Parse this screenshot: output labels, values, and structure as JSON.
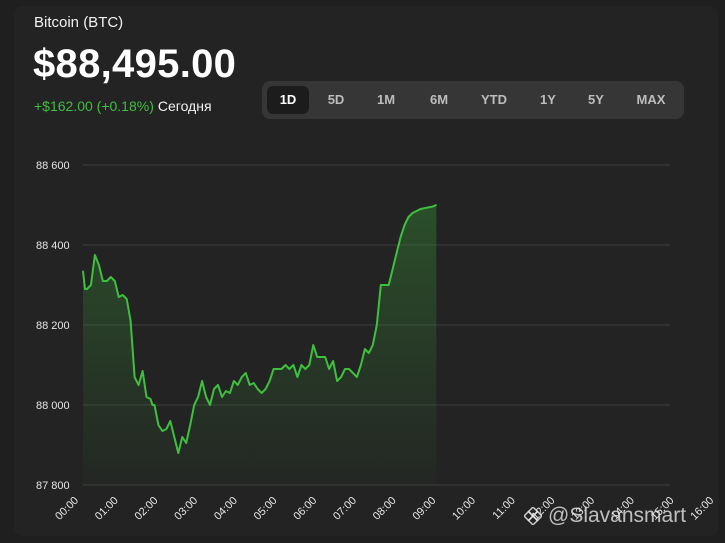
{
  "header": {
    "coin_name": "Bitcoin (BTC)",
    "price": "$88,495.00",
    "change": "+$162.00 (+0.18%)",
    "change_period": "Сегодня"
  },
  "range_tabs": [
    {
      "label": "1D",
      "active": true
    },
    {
      "label": "5D",
      "active": false
    },
    {
      "label": "1M",
      "active": false
    },
    {
      "label": "6M",
      "active": false
    },
    {
      "label": "YTD",
      "active": false
    },
    {
      "label": "1Y",
      "active": false
    },
    {
      "label": "5Y",
      "active": false
    },
    {
      "label": "MAX",
      "active": false
    }
  ],
  "watermark": {
    "text": "@Slavansmart",
    "icon": "binance-square-icon"
  },
  "colors": {
    "background": "#1f1f1f",
    "line": "#3fbf3f",
    "gain_text": "#3fbf3f",
    "grid": "#3c3c3c"
  },
  "chart_data": {
    "type": "area",
    "title": "",
    "xlabel": "",
    "ylabel": "",
    "ylim": [
      87800,
      88600
    ],
    "xlim": [
      0,
      16
    ],
    "grid": true,
    "y_ticks": [
      88600,
      88400,
      88200,
      88000,
      87800
    ],
    "y_tick_labels": [
      "88 600",
      "88 400",
      "88 200",
      "88 000",
      "87 800"
    ],
    "x_ticks": [
      0,
      1,
      2,
      3,
      4,
      5,
      6,
      7,
      8,
      9,
      10,
      11,
      12,
      13,
      14,
      15,
      16
    ],
    "x_tick_labels": [
      "00:00",
      "01:00",
      "02:00",
      "03:00",
      "04:00",
      "05:00",
      "06:00",
      "07:00",
      "08:00",
      "09:00",
      "10:00",
      "11:00",
      "12:00",
      "13:00",
      "14:00",
      "15:00",
      "16:00"
    ],
    "series": [
      {
        "x": [
          0.0,
          0.05,
          0.1,
          0.2,
          0.3,
          0.4,
          0.5,
          0.6,
          0.7,
          0.8,
          0.9,
          1.0,
          1.1,
          1.2,
          1.3,
          1.4,
          1.5,
          1.6,
          1.7,
          1.75,
          1.8,
          1.9,
          2.0,
          2.1,
          2.2,
          2.3,
          2.4,
          2.5,
          2.6,
          2.7,
          2.8,
          2.9,
          3.0,
          3.1,
          3.2,
          3.3,
          3.4,
          3.5,
          3.6,
          3.7,
          3.8,
          3.9,
          4.0,
          4.1,
          4.2,
          4.3,
          4.4,
          4.5,
          4.6,
          4.7,
          4.8,
          4.9,
          5.0,
          5.1,
          5.2,
          5.3,
          5.4,
          5.5,
          5.6,
          5.7,
          5.8,
          5.9,
          6.0,
          6.1,
          6.2,
          6.3,
          6.4,
          6.5,
          6.6,
          6.7,
          6.8,
          6.9,
          7.0,
          7.1,
          7.2,
          7.3,
          7.4,
          7.5,
          7.6,
          7.7,
          7.8,
          7.9,
          8.0,
          8.1,
          8.2,
          8.3,
          8.4,
          8.5,
          8.6,
          8.7,
          8.75,
          8.8,
          8.85,
          8.9
        ],
        "y": [
          88335,
          88290,
          88290,
          88300,
          88375,
          88350,
          88310,
          88310,
          88320,
          88310,
          88270,
          88275,
          88265,
          88210,
          88070,
          88050,
          88085,
          88020,
          88015,
          88000,
          88000,
          87950,
          87935,
          87940,
          87960,
          87920,
          87880,
          87920,
          87905,
          87950,
          88000,
          88020,
          88060,
          88020,
          88000,
          88040,
          88050,
          88020,
          88035,
          88030,
          88060,
          88050,
          88070,
          88080,
          88050,
          88055,
          88040,
          88030,
          88040,
          88060,
          88090,
          88090,
          88090,
          88100,
          88090,
          88100,
          88070,
          88100,
          88090,
          88100,
          88150,
          88120,
          88120,
          88120,
          88090,
          88110,
          88060,
          88070,
          88090,
          88090,
          88080,
          88070,
          88100,
          88140,
          88130,
          88150,
          88200,
          88300,
          88300,
          88300,
          88340,
          88380,
          88420,
          88450,
          88470,
          88480,
          88485,
          88490,
          88492,
          88494,
          88495,
          88496,
          88498,
          88500
        ]
      }
    ]
  }
}
